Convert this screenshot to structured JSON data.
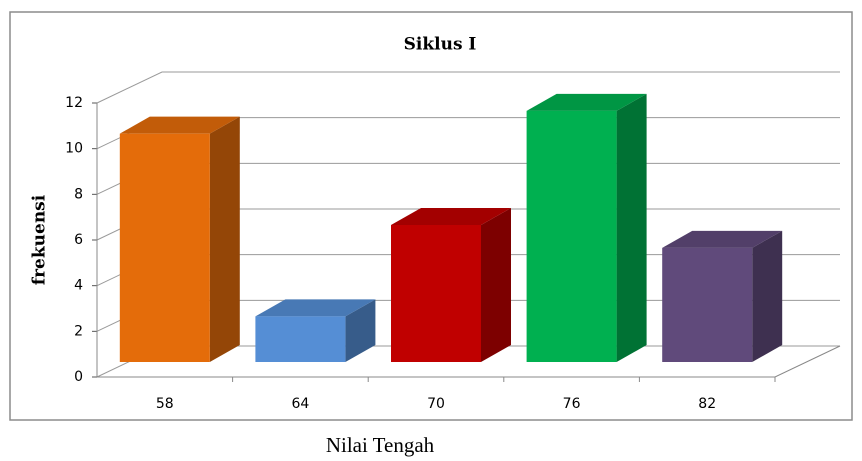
{
  "chart_data": {
    "type": "bar3d",
    "title": "Siklus I",
    "y_label": "frekuensi",
    "x_label": "Nilai Tengah",
    "categories": [
      "58",
      "64",
      "70",
      "76",
      "82"
    ],
    "values": [
      10,
      2,
      6,
      11,
      5
    ],
    "colors": [
      "#e46c0a",
      "#558ed5",
      "#c00000",
      "#00b050",
      "#604a7b"
    ],
    "ylim": [
      0,
      12
    ],
    "yticks": [
      0,
      2,
      4,
      6,
      8,
      10,
      12
    ],
    "grid": true
  }
}
